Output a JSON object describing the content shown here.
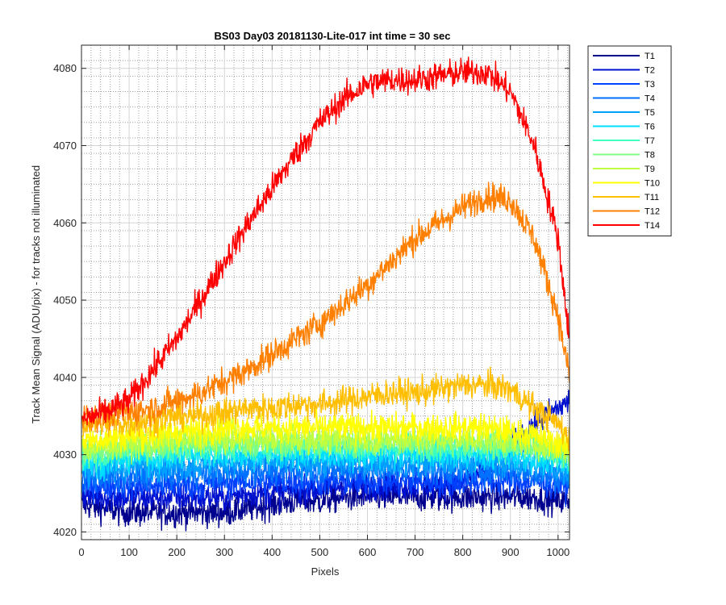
{
  "chart_data": {
    "type": "line",
    "title": "BS03 Day03 20181130-Lite-017 int time = 30 sec",
    "xlabel": "Pixels",
    "ylabel": "Track Mean Signal (ADU/pix) - for tracks not illuminated",
    "xlim": [
      0,
      1024
    ],
    "ylim": [
      4019,
      4083
    ],
    "xticks": [
      "0",
      "100",
      "200",
      "300",
      "400",
      "500",
      "600",
      "700",
      "800",
      "900",
      "1000"
    ],
    "xtick_values": [
      0,
      100,
      200,
      300,
      400,
      500,
      600,
      700,
      800,
      900,
      1000
    ],
    "yticks": [
      "4020",
      "4030",
      "4040",
      "4050",
      "4060",
      "4070",
      "4080"
    ],
    "ytick_values": [
      4020,
      4030,
      4040,
      4050,
      4060,
      4070,
      4080
    ],
    "grid": true,
    "minor_grid": true,
    "legend_position": "outside-top-right",
    "x": [
      0,
      50,
      100,
      150,
      200,
      250,
      300,
      350,
      400,
      450,
      500,
      550,
      600,
      650,
      700,
      750,
      800,
      850,
      900,
      950,
      1000,
      1024
    ],
    "series": [
      {
        "name": "T1",
        "color": "#00008f",
        "noise": 1.3,
        "values": [
          4023.5,
          4023,
          4022.5,
          4022.5,
          4022.5,
          4022.5,
          4022.5,
          4023,
          4023.5,
          4024,
          4024,
          4024.5,
          4024.5,
          4024.5,
          4024.5,
          4024.5,
          4024.5,
          4024.5,
          4024.5,
          4024.5,
          4024,
          4024
        ]
      },
      {
        "name": "T2",
        "color": "#0010cf",
        "noise": 1.3,
        "values": [
          4025,
          4024.5,
          4024.5,
          4024.5,
          4024.5,
          4024.5,
          4024.5,
          4025,
          4025,
          4025.5,
          4025.5,
          4026,
          4026,
          4026,
          4026,
          4026,
          4026.5,
          4028,
          4031,
          4034,
          4036,
          4037
        ]
      },
      {
        "name": "T3",
        "color": "#0040ff",
        "noise": 1.3,
        "values": [
          4026,
          4026,
          4026,
          4026,
          4026,
          4026,
          4026.5,
          4026.5,
          4026.5,
          4026.5,
          4026.5,
          4026.5,
          4026.5,
          4026.5,
          4026.5,
          4026.5,
          4026.5,
          4026.5,
          4026.5,
          4026.5,
          4026,
          4026
        ]
      },
      {
        "name": "T4",
        "color": "#0070ff",
        "noise": 1.3,
        "values": [
          4027,
          4027,
          4027,
          4027.5,
          4027.5,
          4027.5,
          4027.5,
          4028,
          4028,
          4028,
          4028,
          4028,
          4028,
          4028,
          4028,
          4028,
          4028,
          4028,
          4028,
          4027.5,
          4027,
          4026.5
        ]
      },
      {
        "name": "T5",
        "color": "#00a0ff",
        "noise": 1.3,
        "values": [
          4028,
          4028,
          4028.5,
          4028.5,
          4028.5,
          4028.5,
          4029,
          4029,
          4029,
          4029,
          4029,
          4029,
          4029,
          4029,
          4029,
          4029,
          4029,
          4029,
          4029,
          4028.5,
          4028,
          4027.5
        ]
      },
      {
        "name": "T6",
        "color": "#00dfff",
        "noise": 1.3,
        "values": [
          4029,
          4029,
          4029.5,
          4029.5,
          4030,
          4030,
          4030,
          4030,
          4030,
          4030,
          4030,
          4030,
          4030,
          4030,
          4030,
          4030,
          4030,
          4030,
          4030,
          4029.5,
          4029,
          4028.5
        ]
      },
      {
        "name": "T7",
        "color": "#40ffbf",
        "noise": 1.3,
        "values": [
          4030,
          4030,
          4030.5,
          4030.5,
          4031,
          4031,
          4031,
          4031,
          4031,
          4031,
          4031,
          4031,
          4031,
          4031,
          4031,
          4031,
          4031,
          4031,
          4031,
          4030.5,
          4030,
          4029.5
        ]
      },
      {
        "name": "T8",
        "color": "#80ff80",
        "noise": 1.3,
        "values": [
          4030.5,
          4030.5,
          4031,
          4031,
          4031.5,
          4031.5,
          4031.5,
          4031.5,
          4031.5,
          4031.5,
          4031.5,
          4031.5,
          4031.5,
          4031.5,
          4031.5,
          4031.5,
          4031.5,
          4031.5,
          4031.5,
          4031,
          4030.5,
          4030
        ]
      },
      {
        "name": "T9",
        "color": "#bfff40",
        "noise": 1.3,
        "values": [
          4031,
          4031,
          4031.5,
          4031.5,
          4032,
          4032,
          4032,
          4032,
          4032,
          4032,
          4032,
          4032,
          4032,
          4032,
          4032,
          4032,
          4032,
          4032,
          4032,
          4031.5,
          4031,
          4030.5
        ]
      },
      {
        "name": "T10",
        "color": "#ffff00",
        "noise": 1.3,
        "values": [
          4032,
          4032,
          4032.5,
          4032.5,
          4033,
          4033,
          4033.5,
          4033.5,
          4033.5,
          4033.5,
          4033.5,
          4033.5,
          4033.5,
          4033.5,
          4033.5,
          4033.5,
          4033.5,
          4033.5,
          4033,
          4032.5,
          4031.5,
          4031
        ]
      },
      {
        "name": "T11",
        "color": "#ffbf00",
        "noise": 1.3,
        "values": [
          4034,
          4034,
          4034,
          4034.5,
          4035,
          4035,
          4035.5,
          4036,
          4036,
          4036.5,
          4036.5,
          4037,
          4037.5,
          4038,
          4038,
          4038.5,
          4039,
          4039,
          4038.5,
          4036,
          4034,
          4032
        ]
      },
      {
        "name": "T12",
        "color": "#ff8000",
        "noise": 1.3,
        "values": [
          4035,
          4035,
          4035.5,
          4036,
          4037,
          4038,
          4039.5,
          4041,
          4043,
          4045,
          4047,
          4049.5,
          4052,
          4055,
          4058,
          4060,
          4062,
          4063.5,
          4063,
          4058,
          4048,
          4040
        ]
      },
      {
        "name": "T14",
        "color": "#ff0000",
        "noise": 1.3,
        "values": [
          4034.5,
          4035.5,
          4037,
          4041,
          4045,
          4050,
          4055,
          4060,
          4064.5,
          4069,
          4073,
          4076,
          4078,
          4078.5,
          4078.5,
          4079,
          4079.5,
          4079.5,
          4077,
          4070,
          4058,
          4045
        ]
      }
    ]
  }
}
